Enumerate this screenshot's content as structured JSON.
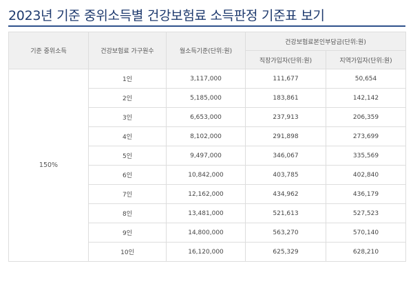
{
  "page": {
    "title": "2023년 기준 중위소득별 건강보험료 소득판정 기준표 보기"
  },
  "table": {
    "headers": {
      "median_income": "기준 중위소득",
      "household_size": "건강보험료 가구원수",
      "monthly_income": "월소득기준(단위:원)",
      "premium_group": "건강보험료본인부담금(단위:원)",
      "employee": "직장가입자(단위:원)",
      "regional": "지역가입자(단위:원)"
    },
    "median_income_value": "150%",
    "rows": [
      {
        "size": "1인",
        "monthly": "3,117,000",
        "employee": "111,677",
        "regional": "50,654"
      },
      {
        "size": "2인",
        "monthly": "5,185,000",
        "employee": "183,861",
        "regional": "142,142"
      },
      {
        "size": "3인",
        "monthly": "6,653,000",
        "employee": "237,913",
        "regional": "206,359"
      },
      {
        "size": "4인",
        "monthly": "8,102,000",
        "employee": "291,898",
        "regional": "273,699"
      },
      {
        "size": "5인",
        "monthly": "9,497,000",
        "employee": "346,067",
        "regional": "335,569"
      },
      {
        "size": "6인",
        "monthly": "10,842,000",
        "employee": "403,785",
        "regional": "402,840"
      },
      {
        "size": "7인",
        "monthly": "12,162,000",
        "employee": "434,962",
        "regional": "436,179"
      },
      {
        "size": "8인",
        "monthly": "13,481,000",
        "employee": "521,613",
        "regional": "527,523"
      },
      {
        "size": "9인",
        "monthly": "14,800,000",
        "employee": "563,270",
        "regional": "570,140"
      },
      {
        "size": "10인",
        "monthly": "16,120,000",
        "employee": "625,329",
        "regional": "628,210"
      }
    ]
  }
}
